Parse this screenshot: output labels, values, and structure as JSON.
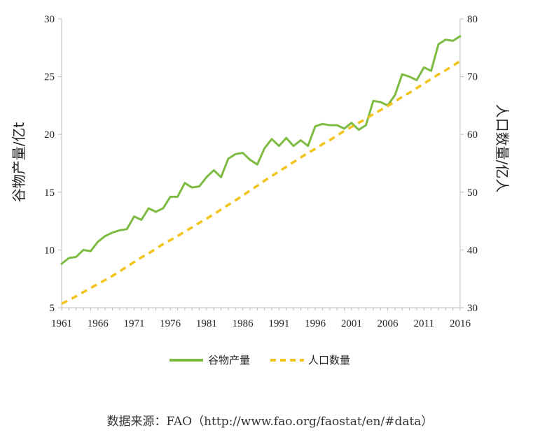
{
  "chart_data": {
    "type": "line",
    "x": [
      1961,
      1962,
      1963,
      1964,
      1965,
      1966,
      1967,
      1968,
      1969,
      1970,
      1971,
      1972,
      1973,
      1974,
      1975,
      1976,
      1977,
      1978,
      1979,
      1980,
      1981,
      1982,
      1983,
      1984,
      1985,
      1986,
      1987,
      1988,
      1989,
      1990,
      1991,
      1992,
      1993,
      1994,
      1995,
      1996,
      1997,
      1998,
      1999,
      2000,
      2001,
      2002,
      2003,
      2004,
      2005,
      2006,
      2007,
      2008,
      2009,
      2010,
      2011,
      2012,
      2013,
      2014,
      2015,
      2016
    ],
    "x_ticks": [
      "1961",
      "1966",
      "1971",
      "1976",
      "1981",
      "1986",
      "1991",
      "1996",
      "2001",
      "2006",
      "2011",
      "2016"
    ],
    "xlim": [
      1961,
      2016
    ],
    "y_left": {
      "label": "谷物产量/亿t",
      "ylim": [
        5,
        30
      ],
      "ticks": [
        "5",
        "10",
        "15",
        "20",
        "25",
        "30"
      ]
    },
    "y_right": {
      "label": "人口数量/亿人",
      "ylim": [
        30,
        80
      ],
      "ticks": [
        "30",
        "40",
        "50",
        "60",
        "70",
        "80"
      ]
    },
    "series": [
      {
        "name": "谷物产量",
        "axis": "left",
        "color": "#7dbb42",
        "values": [
          8.8,
          9.3,
          9.4,
          10.0,
          9.9,
          10.7,
          11.2,
          11.5,
          11.7,
          11.8,
          12.9,
          12.6,
          13.6,
          13.3,
          13.6,
          14.6,
          14.6,
          15.8,
          15.4,
          15.5,
          16.3,
          16.9,
          16.3,
          17.9,
          18.3,
          18.4,
          17.8,
          17.4,
          18.8,
          19.6,
          19.0,
          19.7,
          19.0,
          19.5,
          19.0,
          20.7,
          20.9,
          20.8,
          20.8,
          20.5,
          21.0,
          20.4,
          20.8,
          22.9,
          22.8,
          22.5,
          23.4,
          25.2,
          25.0,
          24.7,
          25.8,
          25.5,
          27.8,
          28.2,
          28.1,
          28.5
        ]
      },
      {
        "name": "人口数量",
        "axis": "right",
        "color": "#f3c41b",
        "dashed": true,
        "values": [
          30.7,
          31.3,
          32.0,
          32.7,
          33.4,
          34.1,
          34.8,
          35.5,
          36.3,
          37.1,
          37.9,
          38.7,
          39.4,
          40.2,
          41.0,
          41.7,
          42.4,
          43.2,
          43.9,
          44.7,
          45.4,
          46.2,
          47.0,
          47.8,
          48.6,
          49.4,
          50.3,
          51.1,
          52.0,
          52.8,
          53.6,
          54.4,
          55.2,
          56.0,
          56.8,
          57.5,
          58.3,
          59.0,
          59.8,
          60.6,
          61.3,
          62.0,
          62.7,
          63.5,
          64.2,
          64.9,
          65.7,
          66.5,
          67.2,
          68.0,
          68.8,
          69.6,
          70.4,
          71.1,
          71.9,
          72.7
        ]
      }
    ],
    "legend": {
      "placement": "bottom-center"
    }
  },
  "source_text": "数据来源：FAO（http://www.fao.org/faostat/en/#data）"
}
